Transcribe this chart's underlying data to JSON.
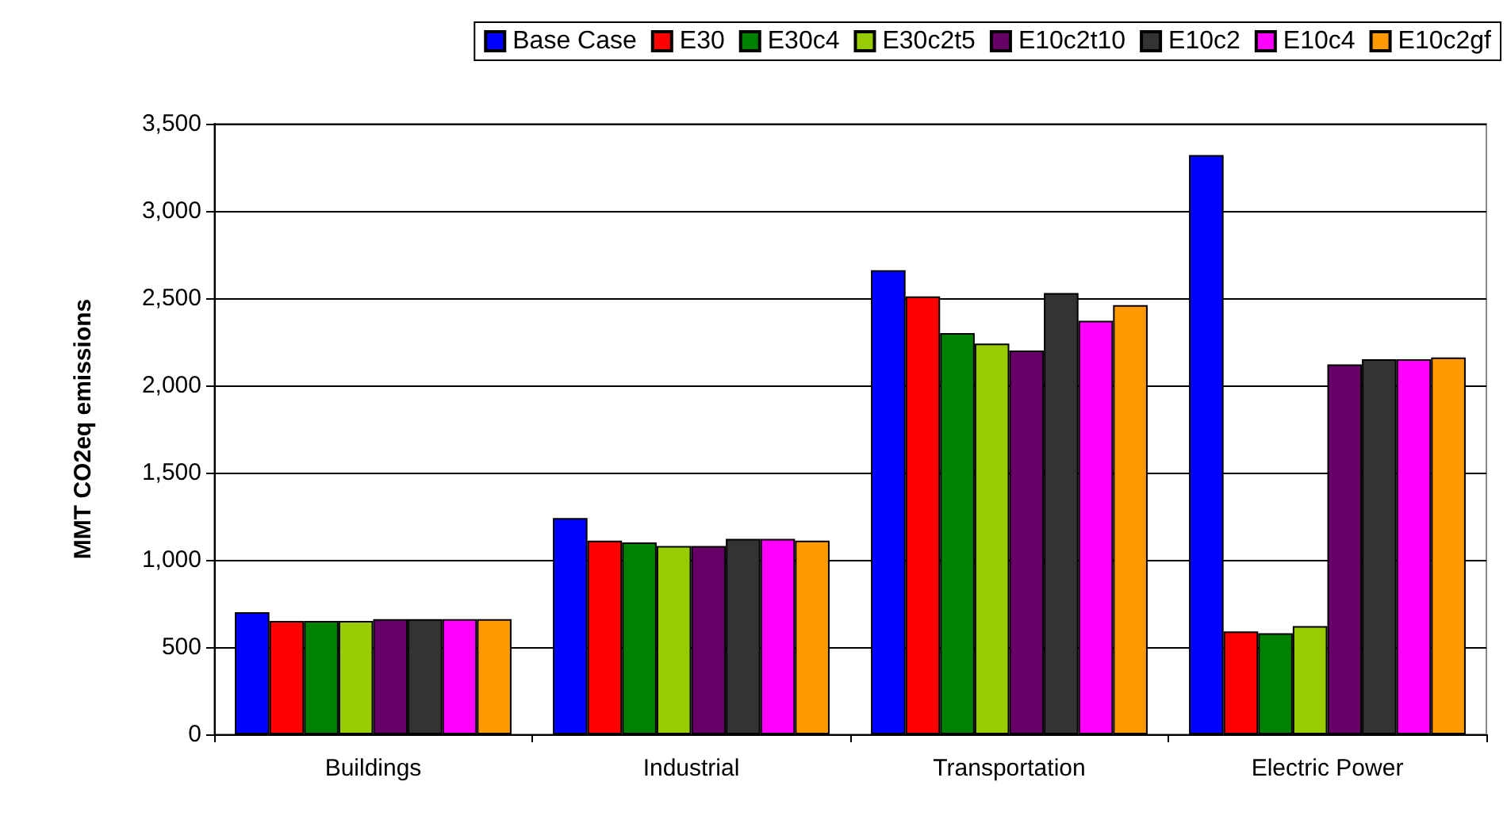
{
  "chart_data": {
    "type": "bar",
    "ylabel": "MMT CO2eq emissions",
    "categories": [
      "Buildings",
      "Industrial",
      "Transportation",
      "Electric Power"
    ],
    "series": [
      {
        "name": "Base Case",
        "color": "#0000ff",
        "values": [
          700,
          1240,
          2660,
          3320
        ]
      },
      {
        "name": "E30",
        "color": "#ff0000",
        "values": [
          650,
          1110,
          2510,
          590
        ]
      },
      {
        "name": "E30c4",
        "color": "#008000",
        "values": [
          650,
          1100,
          2300,
          580
        ]
      },
      {
        "name": "E30c2t5",
        "color": "#99cc00",
        "values": [
          650,
          1080,
          2240,
          620
        ]
      },
      {
        "name": "E10c2t10",
        "color": "#660066",
        "values": [
          660,
          1080,
          2200,
          2120
        ]
      },
      {
        "name": "E10c2",
        "color": "#333333",
        "values": [
          660,
          1120,
          2530,
          2150
        ]
      },
      {
        "name": "E10c4",
        "color": "#ff00ff",
        "values": [
          660,
          1120,
          2370,
          2150
        ]
      },
      {
        "name": "E10c2gf",
        "color": "#ff9900",
        "values": [
          660,
          1110,
          2460,
          2160
        ]
      }
    ],
    "ylim": [
      0,
      3500
    ],
    "yticks": [
      0,
      500,
      {
        "value": 1000,
        "label": "1,000"
      },
      {
        "value": 1500,
        "label": "1,500"
      },
      {
        "value": 2000,
        "label": "2,000"
      },
      {
        "value": 2500,
        "label": "2,500"
      },
      {
        "value": 3000,
        "label": "3,000"
      },
      {
        "value": 3500,
        "label": "3,500"
      }
    ],
    "grid": "y",
    "legend": "top right"
  }
}
